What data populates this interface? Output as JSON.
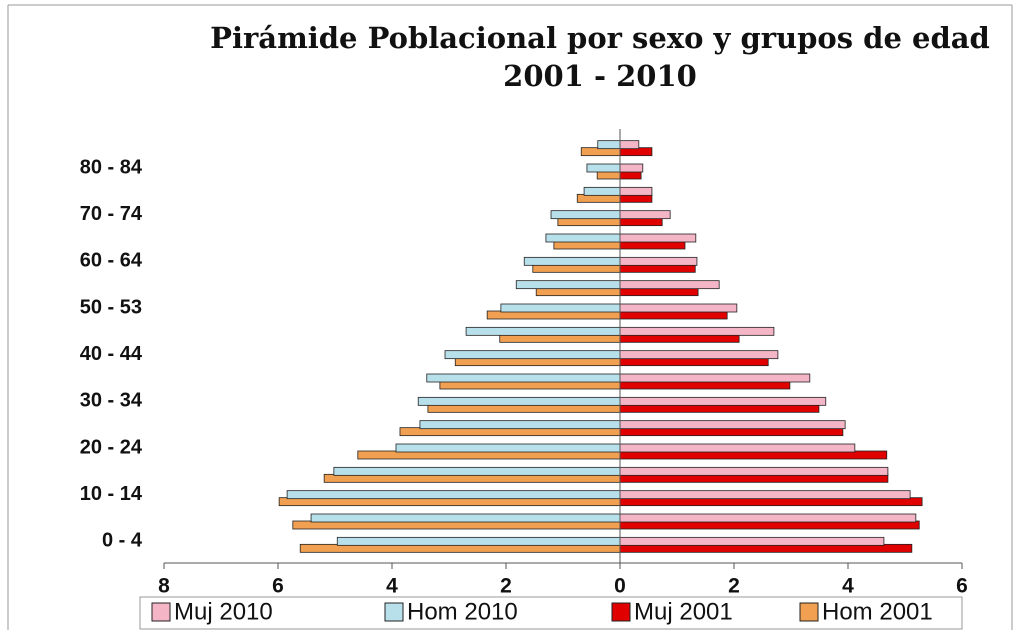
{
  "chart_data": {
    "type": "pyramid",
    "title": "Pirámide Poblacional por sexo y grupos de edad",
    "subtitle": "2001 - 2010",
    "categories": [
      "0 - 4",
      null,
      "10 - 14",
      null,
      "20 - 24",
      null,
      "30 - 34",
      null,
      "40 - 44",
      null,
      "50 - 53",
      null,
      "60 - 64",
      null,
      "70 - 74",
      null,
      "80 - 84",
      null
    ],
    "series": [
      {
        "name": "Muj 2010",
        "color": "#f4b6c6",
        "values": [
          4.63,
          5.19,
          5.09,
          4.7,
          4.12,
          3.95,
          3.61,
          3.33,
          2.77,
          2.7,
          2.05,
          1.74,
          1.35,
          1.33,
          0.88,
          0.56,
          0.4,
          0.33
        ]
      },
      {
        "name": "Hom 2010",
        "color": "#b8e0ea",
        "values": [
          -4.96,
          -5.42,
          -5.84,
          -5.02,
          -3.93,
          -3.51,
          -3.54,
          -3.39,
          -3.07,
          -2.7,
          -2.09,
          -1.82,
          -1.68,
          -1.3,
          -1.21,
          -0.63,
          -0.58,
          -0.39
        ]
      },
      {
        "name": "Muj 2001",
        "color": "#e00000",
        "values": [
          5.12,
          5.25,
          5.3,
          4.7,
          4.68,
          3.91,
          3.49,
          2.98,
          2.6,
          2.09,
          1.88,
          1.37,
          1.32,
          1.14,
          0.74,
          0.56,
          0.37,
          0.56
        ]
      },
      {
        "name": "Hom 2001",
        "color": "#f0a050",
        "values": [
          -5.61,
          -5.74,
          -5.98,
          -5.19,
          -4.6,
          -3.86,
          -3.37,
          -3.16,
          -2.89,
          -2.11,
          -2.33,
          -1.47,
          -1.53,
          -1.16,
          -1.09,
          -0.75,
          -0.4,
          -0.68
        ]
      }
    ],
    "xlim": [
      -8,
      6
    ],
    "xticks": [
      {
        "value": -8,
        "label": "8"
      },
      {
        "value": -6,
        "label": "6"
      },
      {
        "value": -4,
        "label": "4"
      },
      {
        "value": -2,
        "label": "2"
      },
      0,
      2,
      4,
      6
    ],
    "legend": "bottom"
  }
}
